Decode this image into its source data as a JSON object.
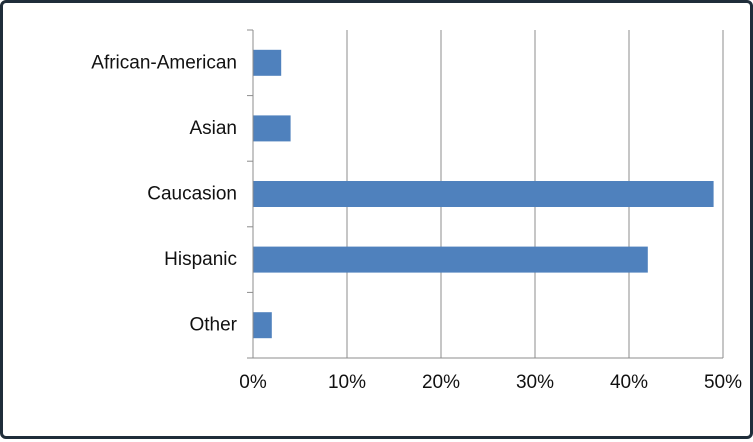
{
  "chart_data": {
    "type": "bar",
    "orientation": "horizontal",
    "categories": [
      "African-American",
      "Asian",
      "Caucasion",
      "Hispanic",
      "Other"
    ],
    "values": [
      3,
      4,
      49,
      42,
      2
    ],
    "unit": "%",
    "xlim": [
      0,
      50
    ],
    "xticks": [
      "0%",
      "10%",
      "20%",
      "30%",
      "40%",
      "50%"
    ],
    "title": "",
    "xlabel": "",
    "ylabel": "",
    "grid": "vertical",
    "legend": "none",
    "bar_color": "#4f81bd",
    "grid_color": "#8c8c8c"
  }
}
